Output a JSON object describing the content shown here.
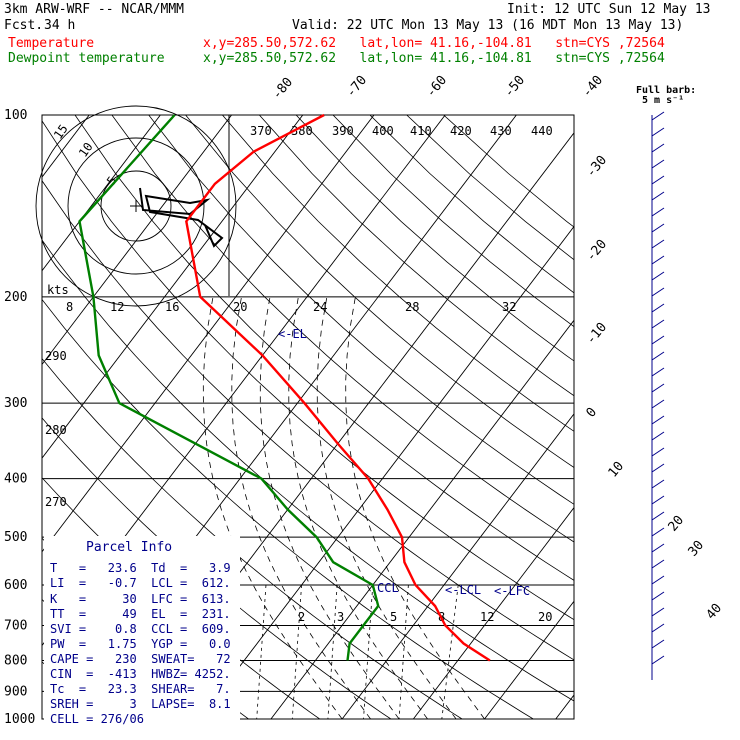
{
  "header": {
    "model": "3km ARW-WRF -- NCAR/MMM",
    "init": "Init: 12 UTC Sun 12 May 13",
    "fcst_label": "Fcst.",
    "fcst_value": "34 h",
    "valid": "Valid: 22 UTC Mon 13 May 13 (16 MDT Mon 13 May 13)",
    "temp_label": "Temperature",
    "temp_loc": "x,y=285.50,572.62   lat,lon= 41.16,-104.81   stn=CYS ,72564",
    "dew_label": "Dewpoint temperature",
    "dew_loc": "x,y=285.50,572.62   lat,lon= 41.16,-104.81   stn=CYS ,72564",
    "barb_label": "Full barb:",
    "barb_unit": "5 m s⁻¹"
  },
  "colors": {
    "temperature": "#ff0000",
    "dewpoint": "#008000",
    "annot": "#00008b",
    "grid": "#000000"
  },
  "chart_data": {
    "type": "line",
    "subtype": "skew-T log-P sounding",
    "y_axis": {
      "label": "pressure (hPa)",
      "scale": "log",
      "ticks": [
        100,
        200,
        300,
        400,
        500,
        600,
        700,
        800,
        900,
        1000
      ]
    },
    "isotherm_labels": [
      "-80",
      "-70",
      "-60",
      "-50",
      "-40",
      "-30",
      "-20",
      "-10",
      "0",
      "10",
      "20",
      "30",
      "40"
    ],
    "theta_labels": [
      "370",
      "380",
      "390",
      "400",
      "410",
      "420",
      "430",
      "440"
    ],
    "theta_left_labels": [
      "290",
      "280",
      "270"
    ],
    "mixing_ratio_labels": [
      "2",
      "3",
      "5",
      "8",
      "12",
      "20"
    ],
    "hodograph": {
      "ring_labels": [
        "15",
        "10",
        "5"
      ],
      "speed_unit": "kts",
      "speed_labels": [
        "8",
        "12",
        "16",
        "20",
        "24",
        "28",
        "32"
      ]
    },
    "series": [
      {
        "name": "Temperature",
        "color": "#ff0000",
        "points": [
          [
            100,
            -57
          ],
          [
            115,
            -63
          ],
          [
            130,
            -65
          ],
          [
            150,
            -65
          ],
          [
            200,
            -55
          ],
          [
            250,
            -40
          ],
          [
            300,
            -29
          ],
          [
            350,
            -20
          ],
          [
            400,
            -12
          ],
          [
            450,
            -6
          ],
          [
            500,
            -1
          ],
          [
            550,
            2
          ],
          [
            600,
            6
          ],
          [
            650,
            11
          ],
          [
            700,
            14.5
          ],
          [
            750,
            19
          ],
          [
            800,
            24.5
          ]
        ]
      },
      {
        "name": "Dewpoint temperature",
        "color": "#008000",
        "points": [
          [
            100,
            -78
          ],
          [
            150,
            -80
          ],
          [
            200,
            -70
          ],
          [
            250,
            -63
          ],
          [
            300,
            -55
          ],
          [
            350,
            -40
          ],
          [
            400,
            -27
          ],
          [
            450,
            -20
          ],
          [
            500,
            -13
          ],
          [
            550,
            -8
          ],
          [
            600,
            0
          ],
          [
            650,
            3
          ],
          [
            700,
            3
          ],
          [
            750,
            3
          ],
          [
            800,
            4.5
          ]
        ]
      }
    ],
    "annotations": [
      "<-EL",
      "CCL",
      "<-LCL",
      "<-LFC"
    ],
    "wind_barbs": "right margin, light winds through the column"
  },
  "parcel": {
    "title": "Parcel Info",
    "rows": [
      "T   =   23.6  Td  =   3.9",
      "LI  =   -0.7  LCL =  612.",
      "K   =     30  LFC =  613.",
      "TT  =     49  EL  =  231.",
      "SVI =    0.8  CCL =  609.",
      "PW  =   1.75  YGP =   0.0",
      "CAPE =   230  SWEAT=   72",
      "CIN  =  -413  HWBZ= 4252.",
      "Tc  =   23.3  SHEAR=   7.",
      "SREH =     3  LAPSE=  8.1",
      "CELL = 276/06"
    ]
  }
}
